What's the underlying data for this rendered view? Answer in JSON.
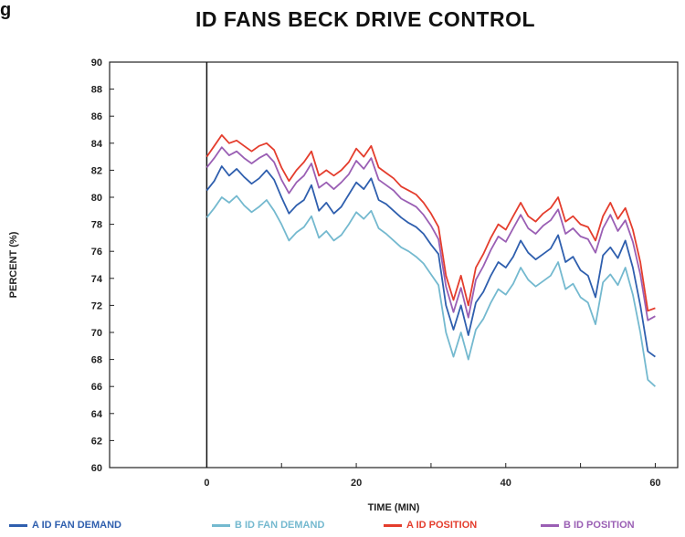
{
  "fig_label": "g",
  "chart_data": {
    "type": "line",
    "title": "ID FANS BECK DRIVE CONTROL",
    "xlabel": "TIME (MIN)",
    "ylabel": "PERCENT (%)",
    "xlim": [
      -13,
      63
    ],
    "ylim": [
      60,
      90
    ],
    "xticks": [
      0,
      20,
      40,
      60
    ],
    "yticks": [
      60,
      62,
      64,
      66,
      68,
      70,
      72,
      74,
      76,
      78,
      80,
      82,
      84,
      86,
      88,
      90
    ],
    "grid": false,
    "legend_position": "bottom",
    "series": [
      {
        "name": "A ID FAN DEMAND",
        "color": "#2f5fae",
        "x": [
          0,
          1,
          2,
          3,
          4,
          5,
          6,
          7,
          8,
          9,
          10,
          11,
          12,
          13,
          14,
          15,
          16,
          17,
          18,
          19,
          20,
          21,
          22,
          23,
          24,
          25,
          26,
          27,
          28,
          29,
          30,
          31,
          32,
          33,
          34,
          35,
          36,
          37,
          38,
          39,
          40,
          41,
          42,
          43,
          44,
          45,
          46,
          47,
          48,
          49,
          50,
          51,
          52,
          53,
          54,
          55,
          56,
          57,
          58,
          59,
          60
        ],
        "values": [
          80.5,
          81.2,
          82.3,
          81.6,
          82.1,
          81.5,
          81.0,
          81.4,
          82.0,
          81.3,
          80.0,
          78.8,
          79.4,
          79.8,
          80.9,
          79.0,
          79.6,
          78.8,
          79.3,
          80.2,
          81.1,
          80.6,
          81.4,
          79.8,
          79.5,
          79.0,
          78.5,
          78.1,
          77.8,
          77.3,
          76.5,
          75.8,
          72.0,
          70.2,
          72.0,
          69.8,
          72.2,
          73.0,
          74.2,
          75.2,
          74.8,
          75.6,
          76.8,
          75.9,
          75.4,
          75.8,
          76.2,
          77.2,
          75.2,
          75.6,
          74.6,
          74.2,
          72.6,
          75.7,
          76.3,
          75.5,
          76.8,
          74.8,
          72.0,
          68.6,
          68.2
        ]
      },
      {
        "name": "B ID FAN DEMAND",
        "color": "#74b9cf",
        "x": [
          0,
          1,
          2,
          3,
          4,
          5,
          6,
          7,
          8,
          9,
          10,
          11,
          12,
          13,
          14,
          15,
          16,
          17,
          18,
          19,
          20,
          21,
          22,
          23,
          24,
          25,
          26,
          27,
          28,
          29,
          30,
          31,
          32,
          33,
          34,
          35,
          36,
          37,
          38,
          39,
          40,
          41,
          42,
          43,
          44,
          45,
          46,
          47,
          48,
          49,
          50,
          51,
          52,
          53,
          54,
          55,
          56,
          57,
          58,
          59,
          60
        ],
        "values": [
          78.5,
          79.2,
          80.0,
          79.6,
          80.1,
          79.4,
          78.9,
          79.3,
          79.8,
          79.0,
          78.0,
          76.8,
          77.4,
          77.8,
          78.6,
          77.0,
          77.5,
          76.8,
          77.2,
          78.0,
          78.9,
          78.4,
          79.0,
          77.7,
          77.3,
          76.8,
          76.3,
          76.0,
          75.6,
          75.1,
          74.3,
          73.5,
          70.0,
          68.2,
          70.0,
          68.0,
          70.2,
          71.0,
          72.2,
          73.2,
          72.8,
          73.6,
          74.8,
          73.9,
          73.4,
          73.8,
          74.2,
          75.2,
          73.2,
          73.6,
          72.6,
          72.2,
          70.6,
          73.7,
          74.3,
          73.5,
          74.8,
          72.8,
          70.0,
          66.5,
          66.0
        ]
      },
      {
        "name": "A ID POSITION",
        "color": "#e43d2d",
        "x": [
          0,
          1,
          2,
          3,
          4,
          5,
          6,
          7,
          8,
          9,
          10,
          11,
          12,
          13,
          14,
          15,
          16,
          17,
          18,
          19,
          20,
          21,
          22,
          23,
          24,
          25,
          26,
          27,
          28,
          29,
          30,
          31,
          32,
          33,
          34,
          35,
          36,
          37,
          38,
          39,
          40,
          41,
          42,
          43,
          44,
          45,
          46,
          47,
          48,
          49,
          50,
          51,
          52,
          53,
          54,
          55,
          56,
          57,
          58,
          59,
          60
        ],
        "values": [
          83.0,
          83.8,
          84.6,
          84.0,
          84.2,
          83.8,
          83.4,
          83.8,
          84.0,
          83.5,
          82.2,
          81.2,
          82.0,
          82.6,
          83.4,
          81.6,
          82.0,
          81.6,
          82.0,
          82.6,
          83.6,
          83.0,
          83.8,
          82.2,
          81.8,
          81.4,
          80.8,
          80.5,
          80.2,
          79.6,
          78.8,
          77.8,
          74.2,
          72.4,
          74.2,
          72.0,
          74.8,
          75.8,
          77.0,
          78.0,
          77.6,
          78.6,
          79.6,
          78.6,
          78.2,
          78.8,
          79.2,
          80.0,
          78.2,
          78.6,
          78.0,
          77.8,
          76.8,
          78.6,
          79.6,
          78.4,
          79.2,
          77.6,
          75.2,
          71.6,
          71.8
        ]
      },
      {
        "name": "B ID POSITION",
        "color": "#9a5fb4",
        "x": [
          0,
          1,
          2,
          3,
          4,
          5,
          6,
          7,
          8,
          9,
          10,
          11,
          12,
          13,
          14,
          15,
          16,
          17,
          18,
          19,
          20,
          21,
          22,
          23,
          24,
          25,
          26,
          27,
          28,
          29,
          30,
          31,
          32,
          33,
          34,
          35,
          36,
          37,
          38,
          39,
          40,
          41,
          42,
          43,
          44,
          45,
          46,
          47,
          48,
          49,
          50,
          51,
          52,
          53,
          54,
          55,
          56,
          57,
          58,
          59,
          60
        ],
        "values": [
          82.2,
          82.9,
          83.7,
          83.1,
          83.4,
          82.9,
          82.5,
          82.9,
          83.2,
          82.6,
          81.3,
          80.3,
          81.1,
          81.6,
          82.5,
          80.7,
          81.1,
          80.6,
          81.1,
          81.7,
          82.7,
          82.1,
          82.9,
          81.3,
          80.9,
          80.5,
          79.9,
          79.6,
          79.3,
          78.7,
          77.9,
          76.9,
          73.4,
          71.5,
          73.3,
          71.1,
          73.9,
          74.9,
          76.1,
          77.1,
          76.7,
          77.7,
          78.7,
          77.7,
          77.3,
          77.9,
          78.3,
          79.1,
          77.3,
          77.7,
          77.1,
          76.9,
          75.9,
          77.7,
          78.7,
          77.5,
          78.3,
          76.7,
          74.3,
          70.9,
          71.2
        ]
      }
    ]
  }
}
